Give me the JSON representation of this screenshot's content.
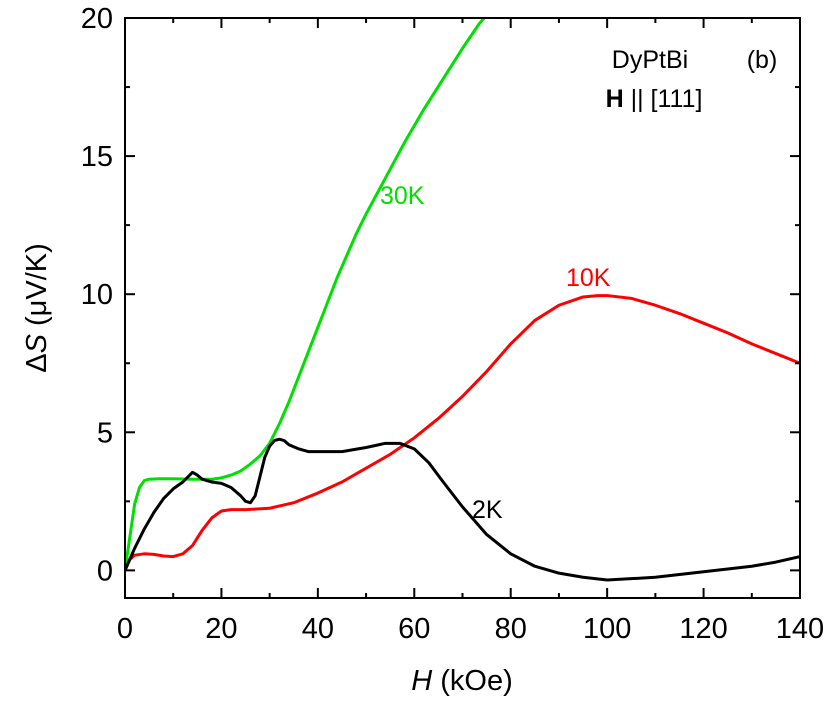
{
  "chart_data": {
    "type": "line",
    "xlabel_var": "H",
    "xlabel_unit": " (kOe)",
    "ylabel_var": "S",
    "ylabel_prefix": "Δ",
    "ylabel_unit": " (μV/K)",
    "xlim": [
      0,
      140
    ],
    "ylim": [
      -1,
      20
    ],
    "xticks": [
      0,
      20,
      40,
      60,
      80,
      100,
      120,
      140
    ],
    "yticks": [
      0,
      5,
      10,
      15,
      20
    ],
    "xtick_labels": [
      "0",
      "20",
      "40",
      "60",
      "80",
      "100",
      "120",
      "140"
    ],
    "ytick_labels": [
      "0",
      "5",
      "10",
      "15",
      "20"
    ],
    "grid": false,
    "panel_label": "(b)",
    "compound": "DyPtBi",
    "field_dir_bold": "H",
    "field_dir_rest": " || [111]",
    "series": [
      {
        "name": "30K",
        "color": "#00e000",
        "x": [
          0,
          1,
          2,
          3,
          4,
          5,
          7,
          10,
          14,
          18,
          20,
          22,
          24,
          26,
          28,
          30,
          32,
          34,
          36,
          38,
          40,
          42,
          44,
          46,
          48,
          50,
          54,
          58,
          62,
          66,
          70,
          73.5,
          74.5
        ],
        "y": [
          0,
          1.2,
          2.4,
          3.0,
          3.25,
          3.3,
          3.32,
          3.32,
          3.3,
          3.3,
          3.35,
          3.45,
          3.6,
          3.85,
          4.15,
          4.6,
          5.3,
          6.1,
          7.0,
          7.9,
          8.8,
          9.7,
          10.6,
          11.4,
          12.2,
          12.9,
          14.2,
          15.5,
          16.7,
          17.8,
          18.9,
          19.8,
          20.0
        ]
      },
      {
        "name": "10K",
        "color": "#ff0000",
        "x": [
          0,
          1,
          2,
          4,
          6,
          8,
          10,
          12,
          14,
          16,
          18,
          20,
          22,
          25,
          30,
          35,
          40,
          45,
          50,
          55,
          60,
          65,
          70,
          75,
          80,
          85,
          90,
          95,
          98,
          100,
          105,
          110,
          115,
          120,
          125,
          130,
          135,
          140
        ],
        "y": [
          0,
          0.4,
          0.55,
          0.6,
          0.58,
          0.52,
          0.5,
          0.6,
          0.9,
          1.45,
          1.9,
          2.15,
          2.2,
          2.2,
          2.25,
          2.45,
          2.8,
          3.2,
          3.7,
          4.2,
          4.8,
          5.5,
          6.3,
          7.2,
          8.2,
          9.05,
          9.6,
          9.9,
          9.95,
          9.95,
          9.85,
          9.6,
          9.3,
          8.95,
          8.6,
          8.2,
          7.85,
          7.5
        ]
      },
      {
        "name": "2K",
        "color": "#000000",
        "x": [
          0,
          2,
          4,
          6,
          8,
          10,
          12,
          14,
          15,
          16,
          18,
          20,
          22,
          24,
          25,
          26,
          27,
          28,
          29,
          30,
          31,
          32,
          33,
          34,
          36,
          38,
          40,
          45,
          50,
          54,
          57,
          60,
          63,
          66,
          70,
          75,
          80,
          85,
          90,
          95,
          100,
          105,
          110,
          115,
          120,
          125,
          130,
          135,
          140
        ],
        "y": [
          0,
          0.8,
          1.5,
          2.1,
          2.6,
          2.95,
          3.2,
          3.55,
          3.45,
          3.3,
          3.2,
          3.15,
          3.0,
          2.7,
          2.5,
          2.45,
          2.7,
          3.4,
          4.1,
          4.5,
          4.7,
          4.75,
          4.7,
          4.55,
          4.4,
          4.3,
          4.3,
          4.3,
          4.45,
          4.6,
          4.6,
          4.4,
          3.9,
          3.2,
          2.3,
          1.3,
          0.6,
          0.15,
          -0.1,
          -0.25,
          -0.35,
          -0.3,
          -0.25,
          -0.15,
          -0.05,
          0.05,
          0.15,
          0.3,
          0.5
        ]
      }
    ]
  }
}
